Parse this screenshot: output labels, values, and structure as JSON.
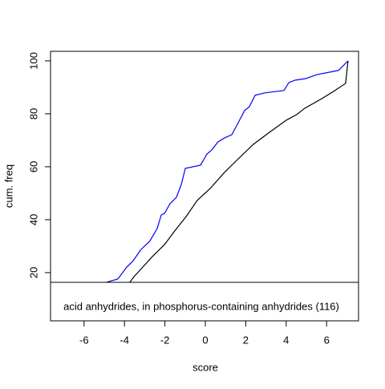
{
  "chart_data": {
    "type": "line",
    "x_label": "score",
    "y_label": "cum. freq",
    "legend_text": "acid anhydrides, in phosphorus-containing anhydrides (116)",
    "xlim": [
      -7.66,
      7.58
    ],
    "ylim": [
      1.8,
      103.6
    ],
    "xticks": [
      -6,
      -4,
      -2,
      0,
      2,
      4,
      6
    ],
    "yticks": [
      20,
      40,
      60,
      80,
      100
    ],
    "series": [
      {
        "name": "blue",
        "color": "#0000ff",
        "x": [
          -4.88,
          -4.33,
          -3.9,
          -3.57,
          -3.21,
          -2.74,
          -2.38,
          -2.18,
          -2.02,
          -1.75,
          -1.43,
          -1.19,
          -0.99,
          -0.24,
          0.08,
          0.32,
          0.63,
          0.95,
          1.31,
          1.59,
          1.94,
          2.18,
          2.46,
          2.94,
          3.89,
          4.13,
          4.44,
          4.96,
          5.52,
          6.59,
          7.06
        ],
        "values": [
          16.4,
          17.6,
          22,
          24.5,
          28.5,
          32,
          36.7,
          41.8,
          42.4,
          46,
          48.5,
          53.3,
          59.4,
          60.6,
          64.8,
          66.4,
          69.4,
          70.9,
          72.1,
          76.1,
          81.2,
          82.7,
          87,
          87.9,
          88.8,
          91.8,
          92.7,
          93.3,
          94.8,
          96.4,
          100
        ]
      },
      {
        "name": "black",
        "color": "#000000",
        "x": [
          -3.73,
          -3.53,
          -3.13,
          -2.62,
          -2.02,
          -1.51,
          -0.95,
          -0.4,
          0.24,
          0.95,
          1.59,
          2.38,
          3.17,
          4.01,
          4.52,
          4.92,
          5.71,
          6.35,
          6.94,
          7.06
        ],
        "values": [
          16.4,
          18.5,
          21.8,
          26.1,
          30.6,
          35.8,
          41.2,
          47.3,
          51.8,
          57.9,
          62.7,
          68.5,
          73,
          77.6,
          79.7,
          82.1,
          85.5,
          88.5,
          91.5,
          100
        ]
      }
    ]
  }
}
